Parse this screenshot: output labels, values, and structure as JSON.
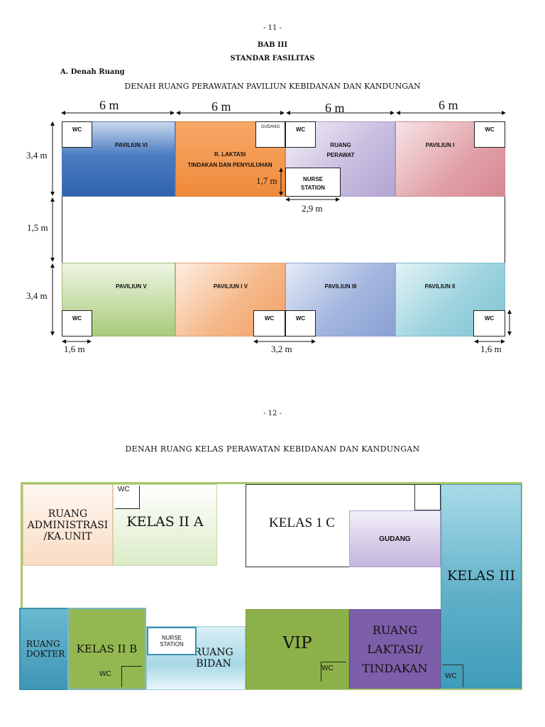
{
  "page1": {
    "page_number": "- 11 -",
    "chapter": "BAB III",
    "chapter_title": "STANDAR FASILITAS",
    "section": "A. Denah Ruang",
    "plan_title": "DENAH RUANG PERAWATAN PAVILIUN KEBIDANAN DAN KANDUNGAN",
    "dims": {
      "w1": "6 m",
      "w2": "6 m",
      "w3": "6 m",
      "w4": "6 m",
      "h_top": "3,4 m",
      "h_mid": "1,5 m",
      "h_bot": "3,4 m",
      "nurse_h": "1,7 m",
      "nurse_w": "2,9 m",
      "wc_left": "1,6 m",
      "wc_mid": "3,2 m",
      "wc_right": "1,6 m"
    },
    "rooms": {
      "paviliun_vi": "PAVILIUN VI",
      "laktasi_line1": "R. LAKTASI",
      "laktasi_line2": "TINDAKAN DAN PENYULUHAN",
      "gudang": "GUDANG",
      "ruang_perawat_line1": "RUANG",
      "ruang_perawat_line2": "PERAWAT",
      "nurse_line1": "NURSE",
      "nurse_line2": "STATION",
      "paviliun_i": "PAVILIUN I",
      "paviliun_v": "PAVILIUN V",
      "paviliun_iv": "PAVILIUN I V",
      "paviliun_iii": "PAVILIUN III",
      "paviliun_ii": "PAVILIUN II",
      "wc": "WC"
    },
    "colors": {
      "paviliun_vi": "#4a7cc0",
      "laktasi": "#f09a52",
      "perawat": "#c9bfe0",
      "paviliun_i": "#e0a0a6",
      "paviliun_v": "#b5d294",
      "paviliun_iv": "#f5b98a",
      "paviliun_iii": "#a3b6df",
      "paviliun_ii": "#9cd3de"
    }
  },
  "page2": {
    "page_number": "- 12 -",
    "plan_title": "DENAH RUANG KELAS PERAWATAN KEBIDANAN DAN KANDUNGAN",
    "rooms": {
      "admin_line1": "RUANG",
      "admin_line2": "ADMINISTRASI",
      "admin_line3": "/KA.UNIT",
      "kelas_iia": "KELAS II A",
      "kelas_1c": "KELAS 1 C",
      "gudang": "GUDANG",
      "kelas_iii": "KELAS III",
      "dokter_line1": "RUANG",
      "dokter_line2": "DOKTER",
      "kelas_iib": "KELAS II B",
      "nurse_line1": "NURSE",
      "nurse_line2": "STATION",
      "bidan_line1": "RUANG",
      "bidan_line2": "BIDAN",
      "vip": "VIP",
      "laktasi_line1": "RUANG",
      "laktasi_line2": "LAKTASI/",
      "laktasi_line3": "TINDAKAN",
      "wc": "WC"
    },
    "colors": {
      "admin": "#f9dcc4",
      "kelas_iia": "#dcebc8",
      "gudang": "#cfc3e3",
      "kelas_iii": "#5fb0c8",
      "dokter": "#4aa2bf",
      "kelas_iib": "#94b851",
      "bidan": "#bfe3ee",
      "vip": "#8db14a",
      "laktasi": "#7d5ea8",
      "frame": "#a8c86a"
    }
  }
}
